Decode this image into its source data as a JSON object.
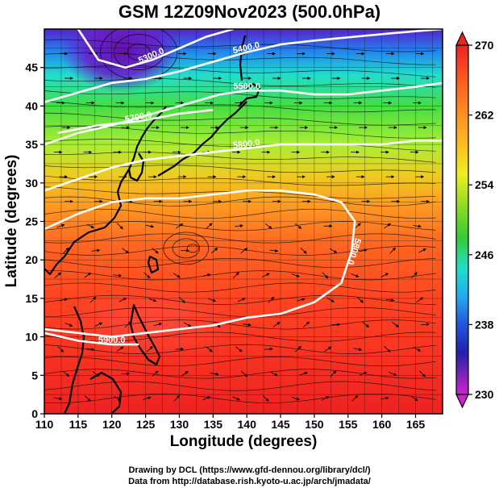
{
  "title": "GSM 12Z09Nov2023 (500.0hPa)",
  "xlabel": "Longitude (degrees)",
  "ylabel": "Latitude  (degrees)",
  "credit_line1": "Drawing by DCL (https://www.gfd-dennou.org/library/dcl/)",
  "credit_line2": "Data from http://database.rish.kyoto-u.ac.jp/arch/jmadata/",
  "colors": {
    "magenta": "#cc22cc",
    "blue": "#2233cc",
    "cyan": "#22ccee",
    "green": "#33cc33",
    "yellow": "#eeee22",
    "orange": "#ff9922",
    "red": "#ee2222"
  },
  "chart_data": {
    "type": "heatmap",
    "description_units": "temperature (K) shading, geopotential height contours (m), streamlines",
    "x_ticks": [
      "110",
      "115",
      "120",
      "125",
      "130",
      "135",
      "140",
      "145",
      "150",
      "155",
      "160",
      "165"
    ],
    "y_ticks": [
      "0",
      "5",
      "10",
      "15",
      "20",
      "25",
      "30",
      "35",
      "40",
      "45"
    ],
    "xlim": [
      110,
      169
    ],
    "ylim": [
      0,
      50
    ],
    "colorbar": {
      "ticks": [
        "270",
        "262",
        "254",
        "246",
        "238",
        "230"
      ],
      "range": [
        230,
        270
      ]
    },
    "contours": [
      {
        "label": "5300.0",
        "value": 5300,
        "points": [
          [
            115,
            50
          ],
          [
            118,
            46
          ],
          [
            122,
            45
          ],
          [
            126,
            46
          ],
          [
            130,
            47.5
          ],
          [
            134,
            49
          ],
          [
            138,
            50
          ]
        ]
      },
      {
        "label": "5400.0",
        "value": 5400,
        "points": [
          [
            110,
            40.5
          ],
          [
            114,
            41.5
          ],
          [
            120,
            43
          ],
          [
            125,
            43.5
          ],
          [
            130,
            44.5
          ],
          [
            136,
            46
          ],
          [
            140,
            47
          ],
          [
            145,
            48
          ],
          [
            150,
            48.5
          ],
          [
            156,
            49
          ],
          [
            162,
            49.5
          ],
          [
            169,
            50
          ]
        ]
      },
      {
        "label": "5500.0",
        "value": 5500,
        "points": [
          [
            110,
            35
          ],
          [
            115,
            36.5
          ],
          [
            120,
            37.5
          ],
          [
            124,
            38.5
          ],
          [
            128,
            39.5
          ],
          [
            132,
            40.5
          ],
          [
            136,
            41.5
          ],
          [
            140,
            42
          ],
          [
            145,
            42
          ],
          [
            150,
            41.5
          ],
          [
            155,
            41.5
          ],
          [
            160,
            42
          ],
          [
            165,
            42.5
          ],
          [
            169,
            43
          ]
        ]
      },
      {
        "label": "5700.0",
        "value": 5700,
        "points": [
          [
            112,
            36.5
          ],
          [
            118,
            37.5
          ],
          [
            124,
            38
          ],
          [
            130,
            39
          ],
          [
            135,
            39.5
          ]
        ]
      },
      {
        "label": "5800.0",
        "value": 5800,
        "points": [
          [
            110,
            29
          ],
          [
            115,
            30.5
          ],
          [
            120,
            32
          ],
          [
            125,
            33
          ],
          [
            130,
            33.5
          ],
          [
            135,
            34
          ],
          [
            140,
            34.5
          ],
          [
            145,
            35
          ],
          [
            150,
            35
          ],
          [
            155,
            35
          ],
          [
            160,
            35
          ],
          [
            165,
            35.5
          ],
          [
            169,
            35.5
          ]
        ]
      },
      {
        "label": "5800.0",
        "value": 5800,
        "points": [
          [
            110,
            24
          ],
          [
            115,
            26
          ],
          [
            120,
            27.5
          ],
          [
            125,
            28
          ],
          [
            130,
            28
          ],
          [
            135,
            28.5
          ],
          [
            140,
            29
          ],
          [
            145,
            29
          ],
          [
            150,
            28.5
          ],
          [
            154,
            27.5
          ],
          [
            156,
            25
          ],
          [
            155.5,
            21
          ],
          [
            154,
            17
          ],
          [
            150,
            14.5
          ],
          [
            145,
            13
          ],
          [
            140,
            12.5
          ],
          [
            135,
            11.5
          ],
          [
            130,
            11
          ],
          [
            125,
            10.5
          ],
          [
            120,
            10
          ],
          [
            115,
            10.5
          ],
          [
            110,
            11
          ]
        ]
      },
      {
        "label": "5900.0",
        "value": 5900,
        "points": [
          [
            110,
            10.5
          ],
          [
            115,
            9.5
          ],
          [
            120,
            9
          ],
          [
            124,
            9
          ]
        ]
      }
    ]
  }
}
